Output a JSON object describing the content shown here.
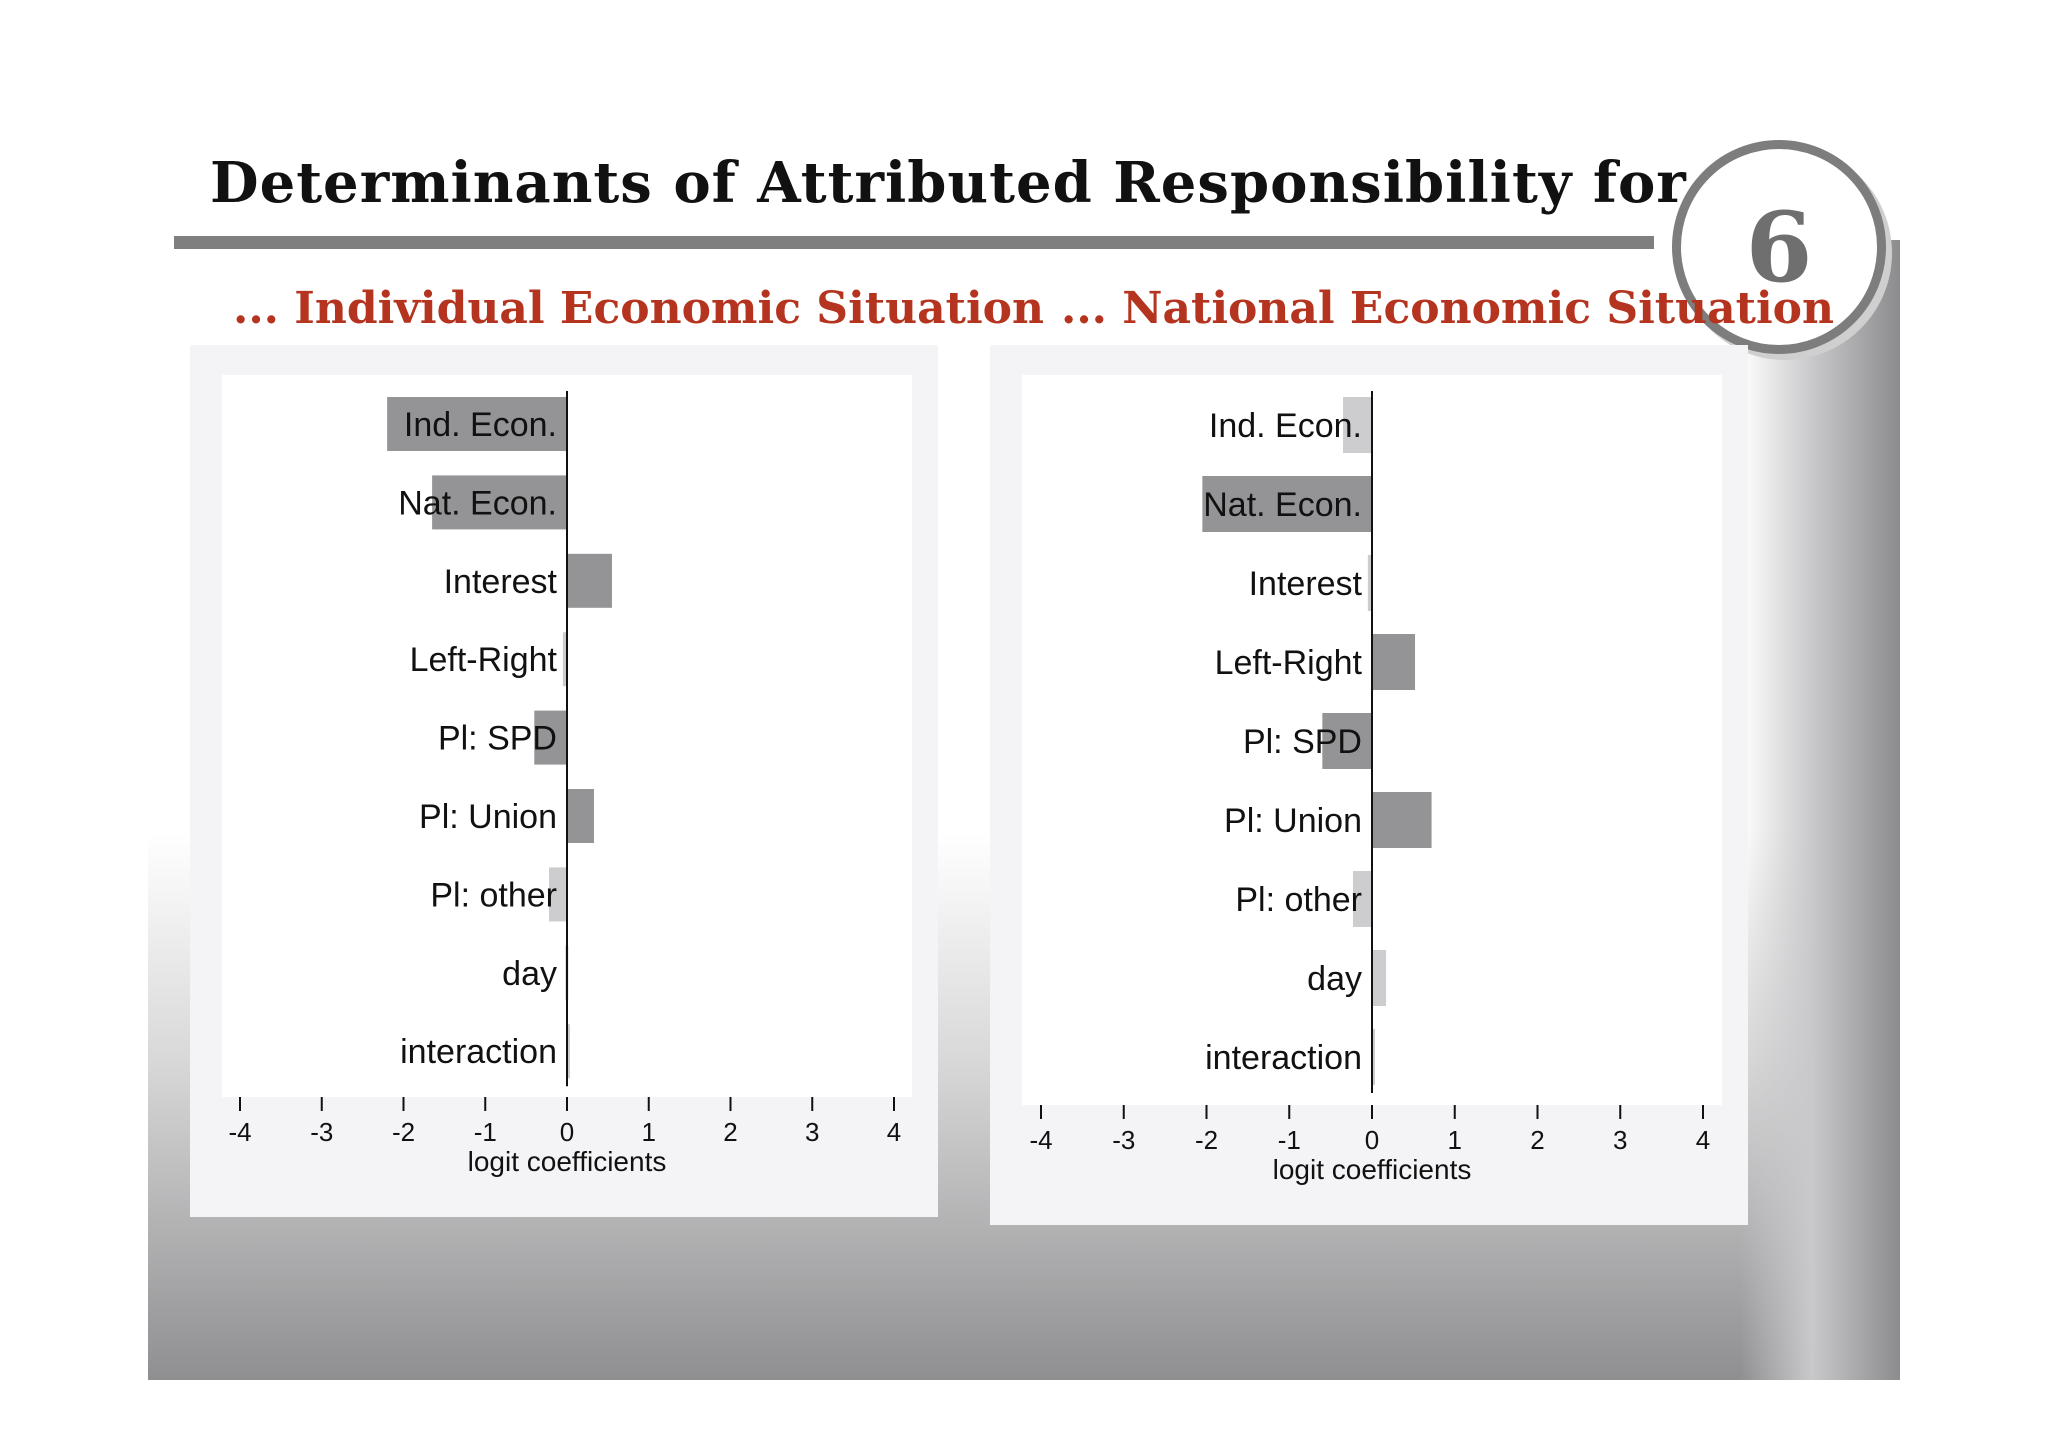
{
  "slide": {
    "title": "Determinants of Attributed Responsibility for ...",
    "number": "6",
    "accent_color": "#b5341f",
    "bar_color": "#949396",
    "bar_light_color": "#cdccce"
  },
  "chart_data": [
    {
      "type": "bar",
      "orientation": "horizontal",
      "title": "... Individual Economic Situation",
      "xlabel": "logit coefficients",
      "ylabel": "",
      "xlim": [
        -4,
        4
      ],
      "xticks": [
        -4,
        -3,
        -2,
        -1,
        0,
        1,
        2,
        3,
        4
      ],
      "categories": [
        "Ind. Econ.",
        "Nat. Econ.",
        "Interest",
        "Left-Right",
        "Pl: SPD",
        "Pl: Union",
        "Pl: other",
        "day",
        "interaction"
      ],
      "values": [
        -2.2,
        -1.65,
        0.55,
        -0.05,
        -0.4,
        0.33,
        -0.22,
        -0.02,
        0.0
      ],
      "significant": [
        true,
        true,
        true,
        false,
        true,
        true,
        false,
        false,
        false
      ]
    },
    {
      "type": "bar",
      "orientation": "horizontal",
      "title": "... National Economic Situation",
      "xlabel": "logit coefficients",
      "ylabel": "",
      "xlim": [
        -4,
        4
      ],
      "xticks": [
        -4,
        -3,
        -2,
        -1,
        0,
        1,
        2,
        3,
        4
      ],
      "categories": [
        "Ind. Econ.",
        "Nat. Econ.",
        "Interest",
        "Left-Right",
        "Pl: SPD",
        "Pl: Union",
        "Pl: other",
        "day",
        "interaction"
      ],
      "values": [
        -0.35,
        -2.05,
        -0.05,
        0.52,
        -0.6,
        0.72,
        -0.23,
        0.17,
        0.0
      ],
      "significant": [
        false,
        true,
        false,
        true,
        true,
        true,
        false,
        false,
        false
      ]
    }
  ]
}
